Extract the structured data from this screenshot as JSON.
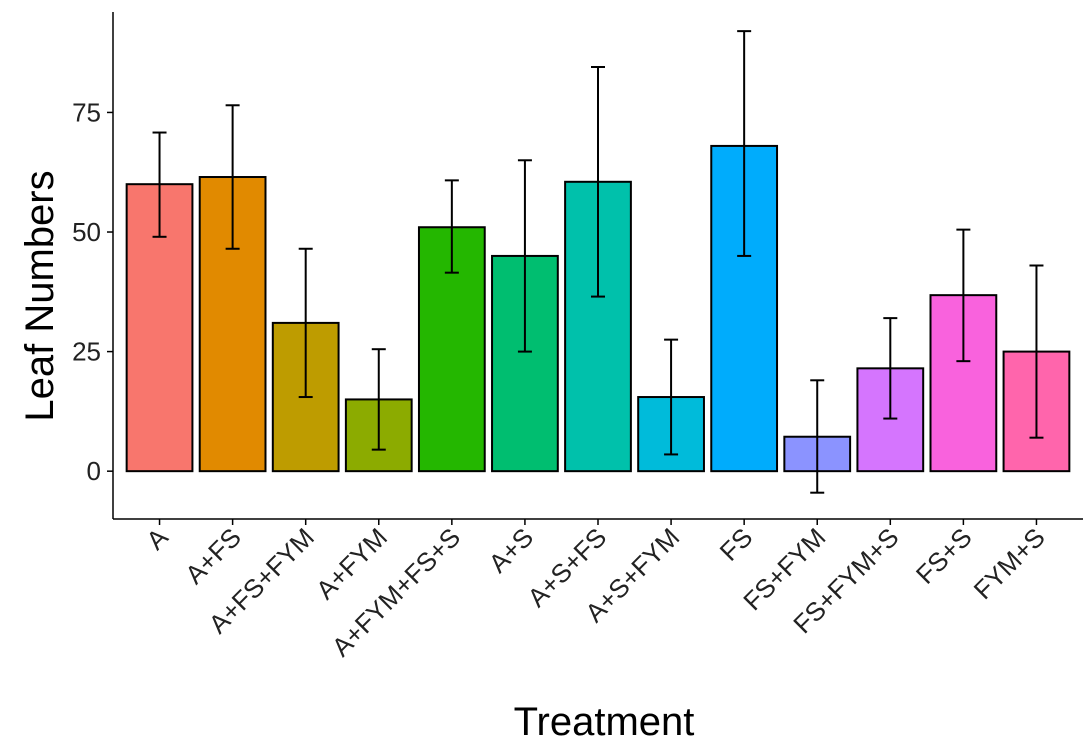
{
  "chart_data": {
    "type": "bar",
    "xlabel": "Treatment",
    "ylabel": "Leaf Numbers",
    "ylim": [
      -10,
      96
    ],
    "yticks": [
      0,
      25,
      50,
      75
    ],
    "grid": false,
    "legend": "none",
    "categories": [
      "A",
      "A+FS",
      "A+FS+FYM",
      "A+FYM",
      "A+FYM+FS+S",
      "A+S",
      "A+S+FS",
      "A+S+FYM",
      "FS",
      "FS+FYM",
      "FS+FYM+S",
      "FS+S",
      "FYM+S"
    ],
    "values": [
      60,
      61.5,
      31,
      15,
      51,
      45,
      60.5,
      15.5,
      68,
      7.2,
      21.5,
      36.8,
      25
    ],
    "error_low": [
      49,
      46.5,
      15.5,
      4.5,
      41.5,
      25,
      36.5,
      3.5,
      45,
      -4.5,
      11,
      23,
      7
    ],
    "error_high": [
      70.8,
      76.5,
      46.5,
      25.5,
      60.8,
      65,
      84.5,
      27.5,
      92,
      19,
      32,
      50.5,
      43
    ],
    "colors": [
      "#F8766D",
      "#E18A00",
      "#BE9C00",
      "#8CAB00",
      "#24B700",
      "#00BE70",
      "#00C1AB",
      "#00BBDA",
      "#00ACFC",
      "#8B93FF",
      "#D575FE",
      "#F962DD",
      "#FF65AC"
    ]
  }
}
